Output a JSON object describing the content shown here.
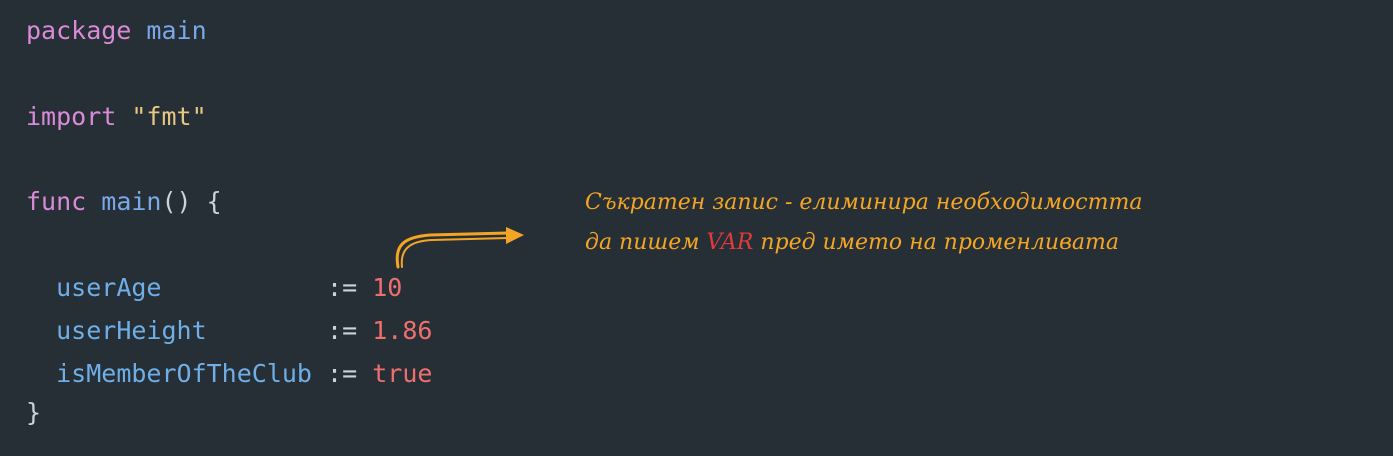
{
  "code": {
    "line1": {
      "kw": "package",
      "name": "main"
    },
    "line2": {
      "kw": "import",
      "str": "\"fmt\""
    },
    "line3": {
      "kw": "func",
      "fn": "main",
      "punc": "() {"
    },
    "vars": [
      {
        "name": "userAge",
        "pad": "           ",
        "op": ":=",
        "value": "10",
        "kind": "num"
      },
      {
        "name": "userHeight",
        "pad": "        ",
        "op": ":=",
        "value": "1.86",
        "kind": "num"
      },
      {
        "name": "isMemberOfTheClub",
        "pad": " ",
        "op": ":=",
        "value": "true",
        "kind": "bool"
      }
    ],
    "close": "}"
  },
  "annotation": {
    "line1": "Съкратен запис - елиминира необходимостта",
    "line2_pre": "да пишем ",
    "line2_accent": "VAR",
    "line2_post": " пред името на променливата"
  },
  "colors": {
    "background": "#262f36",
    "annotation": "#f5a524",
    "accent": "#e23a3a"
  }
}
